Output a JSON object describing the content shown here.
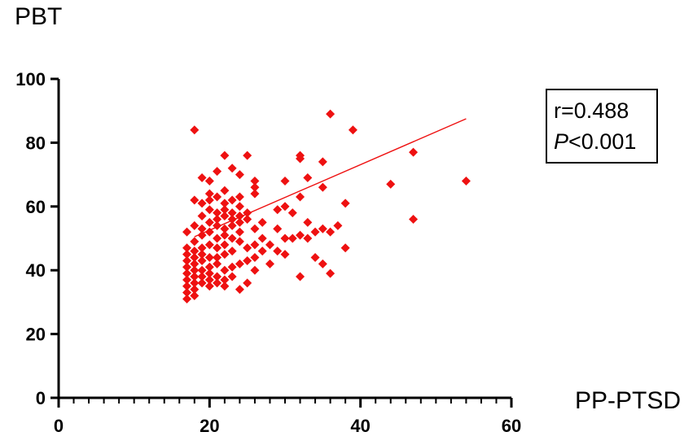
{
  "chart_data": {
    "type": "scatter",
    "ylabel": "PBT",
    "xlabel": "PP-PTSD",
    "xlim": [
      0,
      60
    ],
    "ylim": [
      0,
      100
    ],
    "xticks": [
      0,
      20,
      40,
      60
    ],
    "yticks": [
      0,
      20,
      40,
      60,
      80,
      100
    ],
    "x_minor_step": 2,
    "grid": false,
    "legend": "none",
    "marker": "diamond",
    "color": "#ee1111",
    "annotation": {
      "r_text": "r=0.488",
      "p_symbol": "P",
      "p_text": "<0.001"
    },
    "trendline": {
      "x": [
        18,
        54
      ],
      "y": [
        50.5,
        87.5
      ]
    },
    "points": [
      [
        18,
        84
      ],
      [
        36,
        89
      ],
      [
        39,
        84
      ],
      [
        32,
        76
      ],
      [
        32,
        75
      ],
      [
        35,
        74
      ],
      [
        22,
        76
      ],
      [
        25,
        76
      ],
      [
        47,
        77
      ],
      [
        54,
        68
      ],
      [
        44,
        67
      ],
      [
        47,
        56
      ],
      [
        19,
        69
      ],
      [
        21,
        71
      ],
      [
        23,
        72
      ],
      [
        24,
        70
      ],
      [
        26,
        68
      ],
      [
        26,
        66
      ],
      [
        30,
        68
      ],
      [
        33,
        69
      ],
      [
        35,
        66
      ],
      [
        38,
        61
      ],
      [
        18,
        62
      ],
      [
        19,
        61
      ],
      [
        20,
        64
      ],
      [
        20,
        62
      ],
      [
        21,
        63
      ],
      [
        22,
        61
      ],
      [
        24,
        63
      ],
      [
        26,
        64
      ],
      [
        29,
        59
      ],
      [
        30,
        60
      ],
      [
        31,
        58
      ],
      [
        32,
        63
      ],
      [
        19,
        57
      ],
      [
        20,
        59
      ],
      [
        21,
        58
      ],
      [
        21,
        56
      ],
      [
        22,
        59
      ],
      [
        22,
        57
      ],
      [
        23,
        58
      ],
      [
        23,
        56
      ],
      [
        24,
        57
      ],
      [
        24,
        55
      ],
      [
        25,
        56
      ],
      [
        20,
        55
      ],
      [
        21,
        54
      ],
      [
        22,
        53
      ],
      [
        23,
        54
      ],
      [
        24,
        52
      ],
      [
        19,
        53
      ],
      [
        18,
        54
      ],
      [
        17,
        52
      ],
      [
        19,
        51
      ],
      [
        20,
        52
      ],
      [
        21,
        50
      ],
      [
        22,
        51
      ],
      [
        23,
        50
      ],
      [
        18,
        49
      ],
      [
        19,
        47
      ],
      [
        20,
        48
      ],
      [
        21,
        47
      ],
      [
        22,
        48
      ],
      [
        24,
        49
      ],
      [
        25,
        47
      ],
      [
        27,
        46
      ],
      [
        28,
        48
      ],
      [
        29,
        46
      ],
      [
        30,
        45
      ],
      [
        31,
        50
      ],
      [
        32,
        51
      ],
      [
        33,
        50
      ],
      [
        34,
        52
      ],
      [
        35,
        53
      ],
      [
        36,
        52
      ],
      [
        37,
        54
      ],
      [
        38,
        47
      ],
      [
        35,
        42
      ],
      [
        36,
        39
      ],
      [
        32,
        38
      ],
      [
        28,
        42
      ],
      [
        26,
        40
      ],
      [
        25,
        43
      ],
      [
        24,
        42
      ],
      [
        23,
        41
      ],
      [
        22,
        40
      ],
      [
        21,
        42
      ],
      [
        20,
        41
      ],
      [
        19,
        43
      ],
      [
        18,
        44
      ],
      [
        17,
        45
      ],
      [
        17,
        43
      ],
      [
        17,
        41
      ],
      [
        17,
        39
      ],
      [
        17,
        37
      ],
      [
        17,
        35
      ],
      [
        17,
        33
      ],
      [
        17,
        31
      ],
      [
        18,
        32
      ],
      [
        18,
        34
      ],
      [
        18,
        36
      ],
      [
        18,
        38
      ],
      [
        18,
        40
      ],
      [
        18,
        42
      ],
      [
        19,
        36
      ],
      [
        19,
        38
      ],
      [
        19,
        40
      ],
      [
        20,
        37
      ],
      [
        20,
        39
      ],
      [
        20,
        35
      ],
      [
        21,
        38
      ],
      [
        21,
        36
      ],
      [
        22,
        37
      ],
      [
        22,
        35
      ],
      [
        23,
        38
      ],
      [
        24,
        34
      ],
      [
        25,
        36
      ],
      [
        19,
        45
      ],
      [
        20,
        44
      ],
      [
        21,
        44
      ],
      [
        22,
        45
      ],
      [
        23,
        46
      ],
      [
        17,
        47
      ],
      [
        18,
        46
      ],
      [
        26,
        48
      ],
      [
        27,
        50
      ],
      [
        26,
        53
      ],
      [
        25,
        58
      ],
      [
        24,
        60
      ],
      [
        23,
        62
      ],
      [
        22,
        65
      ],
      [
        20,
        68
      ],
      [
        33,
        55
      ],
      [
        30,
        50
      ],
      [
        29,
        53
      ],
      [
        27,
        55
      ],
      [
        34,
        44
      ],
      [
        26,
        44
      ]
    ]
  }
}
